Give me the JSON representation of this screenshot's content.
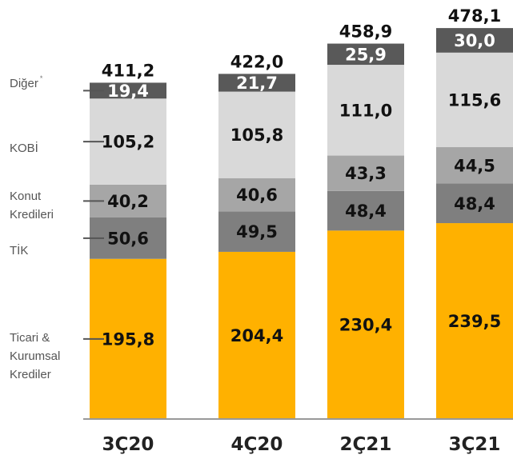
{
  "chart_data": {
    "type": "bar",
    "stacked": true,
    "categories": [
      "3Ç20",
      "4Ç20",
      "2Ç21",
      "3Ç21"
    ],
    "totals": [
      "411,2",
      "422,0",
      "458,9",
      "478,1"
    ],
    "series": [
      {
        "name": "Ticari & Kurumsal Krediler",
        "values": [
          195.8,
          204.4,
          230.4,
          239.5
        ],
        "labels": [
          "195,8",
          "204,4",
          "230,4",
          "239,5"
        ],
        "color": "#FFB100"
      },
      {
        "name": "TİK",
        "values": [
          50.6,
          49.5,
          48.4,
          48.4
        ],
        "labels": [
          "50,6",
          "49,5",
          "48,4",
          "48,4"
        ],
        "color": "#7F7F7F"
      },
      {
        "name": "Konut Kredileri",
        "values": [
          40.2,
          40.6,
          43.3,
          44.5
        ],
        "labels": [
          "40,2",
          "40,6",
          "43,3",
          "44,5"
        ],
        "color": "#A6A6A6"
      },
      {
        "name": "KOBİ",
        "values": [
          105.2,
          105.8,
          111.0,
          115.6
        ],
        "labels": [
          "105,2",
          "105,8",
          "111,0",
          "115,6"
        ],
        "color": "#D9D9D9"
      },
      {
        "name": "Diğer",
        "values": [
          19.4,
          21.7,
          25.9,
          30.0
        ],
        "labels": [
          "19,4",
          "21,7",
          "25,9",
          "30,0"
        ],
        "color": "#595959"
      }
    ],
    "legend": {
      "placement": "left",
      "entries": [
        {
          "lines": [
            "Diğer"
          ],
          "sup": "*"
        },
        {
          "lines": [
            "KOBİ"
          ]
        },
        {
          "lines": [
            "Konut",
            "Kredileri"
          ]
        },
        {
          "lines": [
            "TİK"
          ]
        },
        {
          "lines": [
            "Ticari &",
            "Kurumsal",
            "Krediler"
          ]
        }
      ]
    },
    "title": "",
    "xlabel": "",
    "ylabel": "",
    "ylim": [
      0,
      478.1
    ],
    "grid": false
  }
}
